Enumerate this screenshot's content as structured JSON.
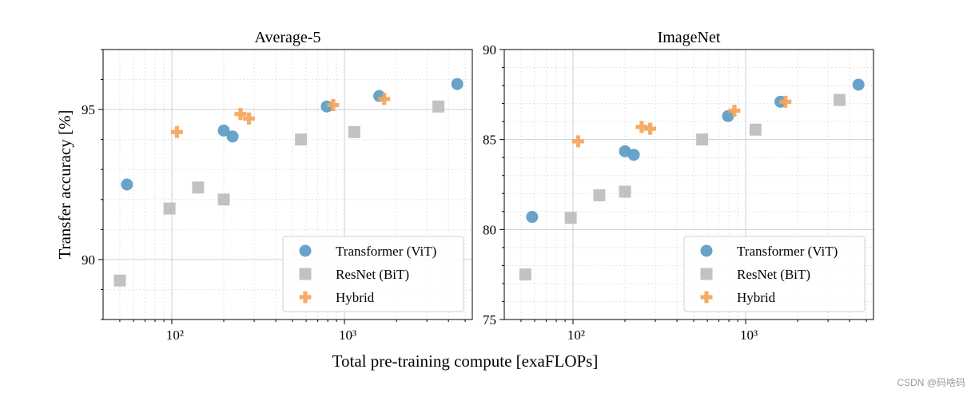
{
  "figure": {
    "xlabel": "Total pre-training compute [exaFLOPs]",
    "ylabel": "Transfer accuracy [%]"
  },
  "watermark": "CSDN @码啥码",
  "legend_entries": [
    {
      "key": "vit",
      "label": "Transformer (ViT)"
    },
    {
      "key": "bit",
      "label": "ResNet (BiT)"
    },
    {
      "key": "hybrid",
      "label": "Hybrid"
    }
  ],
  "colors": {
    "vit": "#5b9bc6",
    "bit": "#bdbdbd",
    "hybrid": "#f5a55a",
    "grid": "#dddddd"
  },
  "chart_data": [
    {
      "type": "scatter",
      "title": "Average-5",
      "xscale": "log",
      "xlim": [
        40,
        5500
      ],
      "ylim": [
        88,
        97
      ],
      "yticks": [
        90,
        95
      ],
      "xticks": [
        {
          "value": 100,
          "label": "10²"
        },
        {
          "value": 1000,
          "label": "10³"
        }
      ],
      "legend_position": "bottom-right",
      "grid": true,
      "series": [
        {
          "name": "Transformer (ViT)",
          "key": "vit",
          "marker": "circle",
          "points": [
            [
              55,
              92.5
            ],
            [
              200,
              94.3
            ],
            [
              225,
              94.1
            ],
            [
              790,
              95.1
            ],
            [
              1590,
              95.45
            ],
            [
              4500,
              95.85
            ]
          ]
        },
        {
          "name": "ResNet (BiT)",
          "key": "bit",
          "marker": "square",
          "points": [
            [
              50,
              89.3
            ],
            [
              97,
              91.7
            ],
            [
              142,
              92.4
            ],
            [
              200,
              92.0
            ],
            [
              560,
              94.0
            ],
            [
              1140,
              94.25
            ],
            [
              3500,
              95.1
            ]
          ]
        },
        {
          "name": "Hybrid",
          "key": "hybrid",
          "marker": "plus",
          "points": [
            [
              107,
              94.25
            ],
            [
              250,
              94.85
            ],
            [
              280,
              94.7
            ],
            [
              860,
              95.15
            ],
            [
              1700,
              95.35
            ]
          ]
        }
      ]
    },
    {
      "type": "scatter",
      "title": "ImageNet",
      "xscale": "log",
      "xlim": [
        40,
        5500
      ],
      "ylim": [
        75,
        90
      ],
      "yticks": [
        75,
        80,
        85,
        90
      ],
      "xticks": [
        {
          "value": 100,
          "label": "10²"
        },
        {
          "value": 1000,
          "label": "10³"
        }
      ],
      "legend_position": "bottom-right",
      "grid": true,
      "series": [
        {
          "name": "Transformer (ViT)",
          "key": "vit",
          "marker": "circle",
          "points": [
            [
              58,
              80.7
            ],
            [
              200,
              84.35
            ],
            [
              225,
              84.15
            ],
            [
              790,
              86.3
            ],
            [
              1590,
              87.1
            ],
            [
              4500,
              88.05
            ]
          ]
        },
        {
          "name": "ResNet (BiT)",
          "key": "bit",
          "marker": "square",
          "points": [
            [
              53,
              77.5
            ],
            [
              97,
              80.65
            ],
            [
              142,
              81.9
            ],
            [
              200,
              82.1
            ],
            [
              560,
              85.0
            ],
            [
              1140,
              85.55
            ],
            [
              3500,
              87.2
            ]
          ]
        },
        {
          "name": "Hybrid",
          "key": "hybrid",
          "marker": "plus",
          "points": [
            [
              107,
              84.9
            ],
            [
              250,
              85.7
            ],
            [
              280,
              85.6
            ],
            [
              860,
              86.6
            ],
            [
              1700,
              87.1
            ]
          ]
        }
      ]
    }
  ]
}
